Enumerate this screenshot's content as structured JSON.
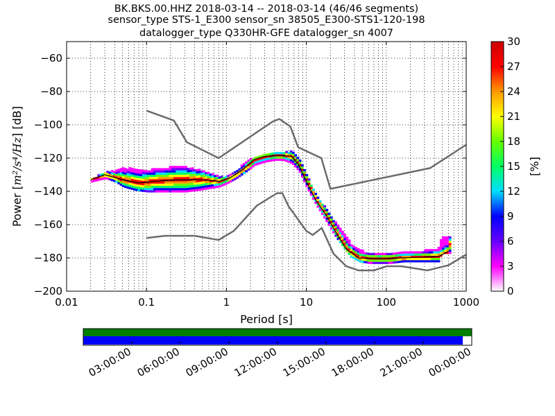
{
  "chart_data": {
    "type": "heatmap",
    "title_lines": [
      "BK.BKS.00.HHZ   2018-03-14 -- 2018-03-14  (46/46 segments)",
      "sensor_type STS-1_E300 sensor_sn 38505_E300-STS1-120-198",
      "datalogger_type Q330HR-GFE datalogger_sn 4007"
    ],
    "xlabel": "Period [s]",
    "ylabel_prefix": "Power [",
    "ylabel_math": "m²/s⁴/Hz",
    "ylabel_suffix": "] [dB]",
    "xscale": "log",
    "xlim": [
      0.01,
      1000
    ],
    "ylim": [
      -200,
      -50
    ],
    "x_ticks": [
      {
        "value": 0.01,
        "label": "0.01"
      },
      {
        "value": 0.1,
        "label": "0.1"
      },
      {
        "value": 1,
        "label": "1"
      },
      {
        "value": 10,
        "label": "10"
      },
      {
        "value": 100,
        "label": "100"
      },
      {
        "value": 1000,
        "label": "1000"
      }
    ],
    "y_ticks": [
      {
        "value": -60,
        "label": "−60"
      },
      {
        "value": -80,
        "label": "−80"
      },
      {
        "value": -100,
        "label": "−100"
      },
      {
        "value": -120,
        "label": "−120"
      },
      {
        "value": -140,
        "label": "−140"
      },
      {
        "value": -160,
        "label": "−160"
      },
      {
        "value": -180,
        "label": "−180"
      },
      {
        "value": -200,
        "label": "−200"
      }
    ],
    "colorbar": {
      "label": "[%]",
      "range": [
        0,
        30
      ],
      "ticks": [
        {
          "value": 0,
          "label": "0"
        },
        {
          "value": 3,
          "label": "3"
        },
        {
          "value": 6,
          "label": "6"
        },
        {
          "value": 9,
          "label": "9"
        },
        {
          "value": 12,
          "label": "12"
        },
        {
          "value": 15,
          "label": "15"
        },
        {
          "value": 18,
          "label": "18"
        },
        {
          "value": 21,
          "label": "21"
        },
        {
          "value": 24,
          "label": "24"
        },
        {
          "value": 27,
          "label": "27"
        },
        {
          "value": 30,
          "label": "30"
        }
      ],
      "stops": [
        "#ffffff",
        "#ff00ff",
        "#6600ff",
        "#0000ff",
        "#00ddff",
        "#00ff66",
        "#66ff00",
        "#ffff00",
        "#ff9900",
        "#ff0000",
        "#cc0000"
      ]
    },
    "reference_curves": [
      {
        "name": "NHNM",
        "color": "#6b6b6b",
        "points": [
          [
            0.1,
            -91.5
          ],
          [
            0.22,
            -97.4
          ],
          [
            0.32,
            -110.5
          ],
          [
            0.8,
            -120
          ],
          [
            3.8,
            -98
          ],
          [
            4.6,
            -96.5
          ],
          [
            6.3,
            -101
          ],
          [
            7.9,
            -113.5
          ],
          [
            15.4,
            -120
          ],
          [
            20,
            -138.5
          ],
          [
            354,
            -126
          ],
          [
            1000,
            -112
          ]
        ]
      },
      {
        "name": "NLNM",
        "color": "#6b6b6b",
        "points": [
          [
            0.1,
            -168
          ],
          [
            0.17,
            -166.7
          ],
          [
            0.4,
            -166.7
          ],
          [
            0.8,
            -169.2
          ],
          [
            1.24,
            -163.7
          ],
          [
            2.4,
            -148.6
          ],
          [
            4.3,
            -141.1
          ],
          [
            5,
            -141.1
          ],
          [
            6,
            -149
          ],
          [
            10,
            -163.8
          ],
          [
            12,
            -166.2
          ],
          [
            15.6,
            -162
          ],
          [
            21.9,
            -177.5
          ],
          [
            31.6,
            -185
          ],
          [
            45,
            -187.5
          ],
          [
            70,
            -187.5
          ],
          [
            101,
            -185
          ],
          [
            154,
            -185
          ],
          [
            328,
            -187.5
          ],
          [
            600,
            -184.4
          ],
          [
            1000,
            -178
          ]
        ]
      }
    ],
    "mode_curve": {
      "name": "mode",
      "color": "#000000",
      "points": [
        [
          0.02,
          -133
        ],
        [
          0.03,
          -130
        ],
        [
          0.05,
          -133
        ],
        [
          0.08,
          -135
        ],
        [
          0.12,
          -134
        ],
        [
          0.25,
          -133
        ],
        [
          0.5,
          -133
        ],
        [
          0.8,
          -134
        ],
        [
          1.1,
          -132
        ],
        [
          1.6,
          -127
        ],
        [
          2.2,
          -121
        ],
        [
          3,
          -119
        ],
        [
          4,
          -118.5
        ],
        [
          5,
          -118.5
        ],
        [
          6.5,
          -119
        ],
        [
          8,
          -124
        ],
        [
          10,
          -134
        ],
        [
          13,
          -145
        ],
        [
          18,
          -155
        ],
        [
          25,
          -167
        ],
        [
          32,
          -175
        ],
        [
          45,
          -180
        ],
        [
          80,
          -180.5
        ],
        [
          150,
          -180
        ],
        [
          300,
          -179.5
        ],
        [
          460,
          -179
        ],
        [
          600,
          -176
        ]
      ]
    },
    "psd_band": [
      {
        "p": 0.02,
        "lo": -134,
        "hi": -132
      },
      {
        "p": 0.03,
        "lo": -132,
        "hi": -128
      },
      {
        "p": 0.04,
        "lo": -134,
        "hi": -127
      },
      {
        "p": 0.05,
        "lo": -137,
        "hi": -126
      },
      {
        "p": 0.07,
        "lo": -139,
        "hi": -126
      },
      {
        "p": 0.1,
        "lo": -140,
        "hi": -127
      },
      {
        "p": 0.15,
        "lo": -140,
        "hi": -126
      },
      {
        "p": 0.2,
        "lo": -140,
        "hi": -125
      },
      {
        "p": 0.3,
        "lo": -140,
        "hi": -125
      },
      {
        "p": 0.45,
        "lo": -139,
        "hi": -127
      },
      {
        "p": 0.6,
        "lo": -138,
        "hi": -129
      },
      {
        "p": 0.8,
        "lo": -137,
        "hi": -131
      },
      {
        "p": 1.0,
        "lo": -135,
        "hi": -131
      },
      {
        "p": 1.3,
        "lo": -132,
        "hi": -127
      },
      {
        "p": 1.7,
        "lo": -128,
        "hi": -122
      },
      {
        "p": 2.2,
        "lo": -124,
        "hi": -119
      },
      {
        "p": 3,
        "lo": -122,
        "hi": -117
      },
      {
        "p": 4,
        "lo": -121,
        "hi": -116
      },
      {
        "p": 5,
        "lo": -121,
        "hi": -116
      },
      {
        "p": 6.5,
        "lo": -123,
        "hi": -116
      },
      {
        "p": 8,
        "lo": -128,
        "hi": -121
      },
      {
        "p": 10,
        "lo": -138,
        "hi": -131
      },
      {
        "p": 13,
        "lo": -148,
        "hi": -142
      },
      {
        "p": 17,
        "lo": -157,
        "hi": -150
      },
      {
        "p": 22,
        "lo": -166,
        "hi": -158
      },
      {
        "p": 28,
        "lo": -173,
        "hi": -164
      },
      {
        "p": 35,
        "lo": -179,
        "hi": -171
      },
      {
        "p": 45,
        "lo": -182,
        "hi": -175
      },
      {
        "p": 60,
        "lo": -183,
        "hi": -177
      },
      {
        "p": 80,
        "lo": -183,
        "hi": -177
      },
      {
        "p": 110,
        "lo": -183,
        "hi": -177
      },
      {
        "p": 160,
        "lo": -182,
        "hi": -176
      },
      {
        "p": 230,
        "lo": -182,
        "hi": -176
      },
      {
        "p": 320,
        "lo": -182,
        "hi": -175
      },
      {
        "p": 440,
        "lo": -182,
        "hi": -174
      },
      {
        "p": 480,
        "lo": -177,
        "hi": -167
      },
      {
        "p": 620,
        "lo": -177,
        "hi": -167
      }
    ],
    "timeline": {
      "labels": [
        "03:00:00",
        "06:00:00",
        "09:00:00",
        "12:00:00",
        "15:00:00",
        "18:00:00",
        "21:00:00",
        "00:00:00"
      ],
      "hours_total": 24,
      "data_bar_color": "#007f00",
      "coverage_bar_color": "#0000ff",
      "data_fraction": 1.0,
      "coverage_fraction": 0.977
    }
  }
}
